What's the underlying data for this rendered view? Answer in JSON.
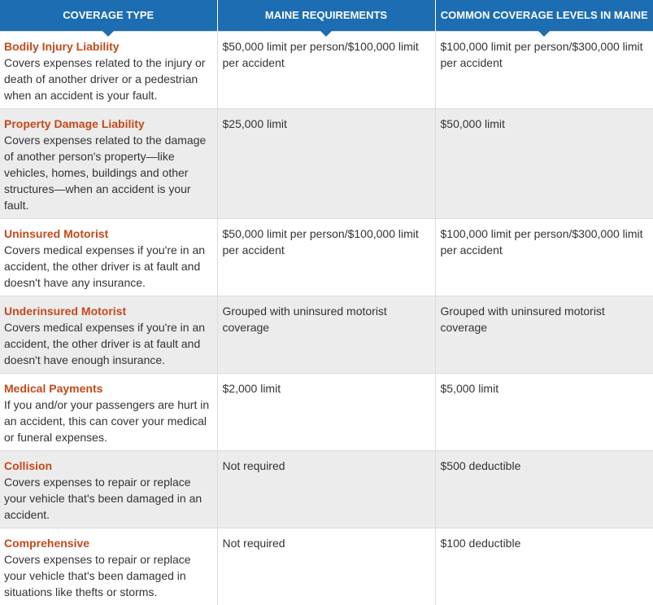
{
  "headers": {
    "coverage_type": "COVERAGE TYPE",
    "maine_requirements": "MAINE REQUIREMENTS",
    "common_levels": "COMMON COVERAGE LEVELS IN MAINE"
  },
  "rows": [
    {
      "title": "Bodily Injury Liability",
      "description": "Covers expenses related to the injury or death of another driver or a pedestrian when an accident is your fault.",
      "requirement": "$50,000 limit per person/$100,000 limit per accident",
      "common": "$100,000 limit per person/$300,000 limit per accident"
    },
    {
      "title": "Property Damage Liability",
      "description": "Covers expenses related to the damage of another person's property—like vehicles, homes, buildings and other structures—when an accident is your fault.",
      "requirement": "$25,000 limit",
      "common": "$50,000 limit"
    },
    {
      "title": "Uninsured Motorist",
      "description": "Covers medical expenses if you're in an accident, the other driver is at fault and doesn't have any insurance.",
      "requirement": "$50,000 limit per person/$100,000 limit per accident",
      "common": "$100,000 limit per person/$300,000 limit per accident"
    },
    {
      "title": "Underinsured Motorist",
      "description": "Covers medical expenses if you're in an accident, the other driver is at fault and doesn't have enough insurance.",
      "requirement": "Grouped with uninsured motorist coverage",
      "common": "Grouped with uninsured motorist coverage"
    },
    {
      "title": "Medical Payments",
      "description": "If you and/or your passengers are hurt in an accident, this can cover your medical or funeral expenses.",
      "requirement": "$2,000 limit",
      "common": "$5,000 limit"
    },
    {
      "title": "Collision",
      "description": "Covers expenses to repair or replace your vehicle that's been damaged in an accident.",
      "requirement": "Not required",
      "common": "$500 deductible"
    },
    {
      "title": "Comprehensive",
      "description": "Covers expenses to repair or replace your vehicle that's been damaged in situations like thefts or storms.",
      "requirement": "Not required",
      "common": "$100 deductible"
    }
  ],
  "colors": {
    "header_bg": "#1d6db2",
    "title_text": "#c4491b",
    "alt_row_bg": "#ececec"
  }
}
